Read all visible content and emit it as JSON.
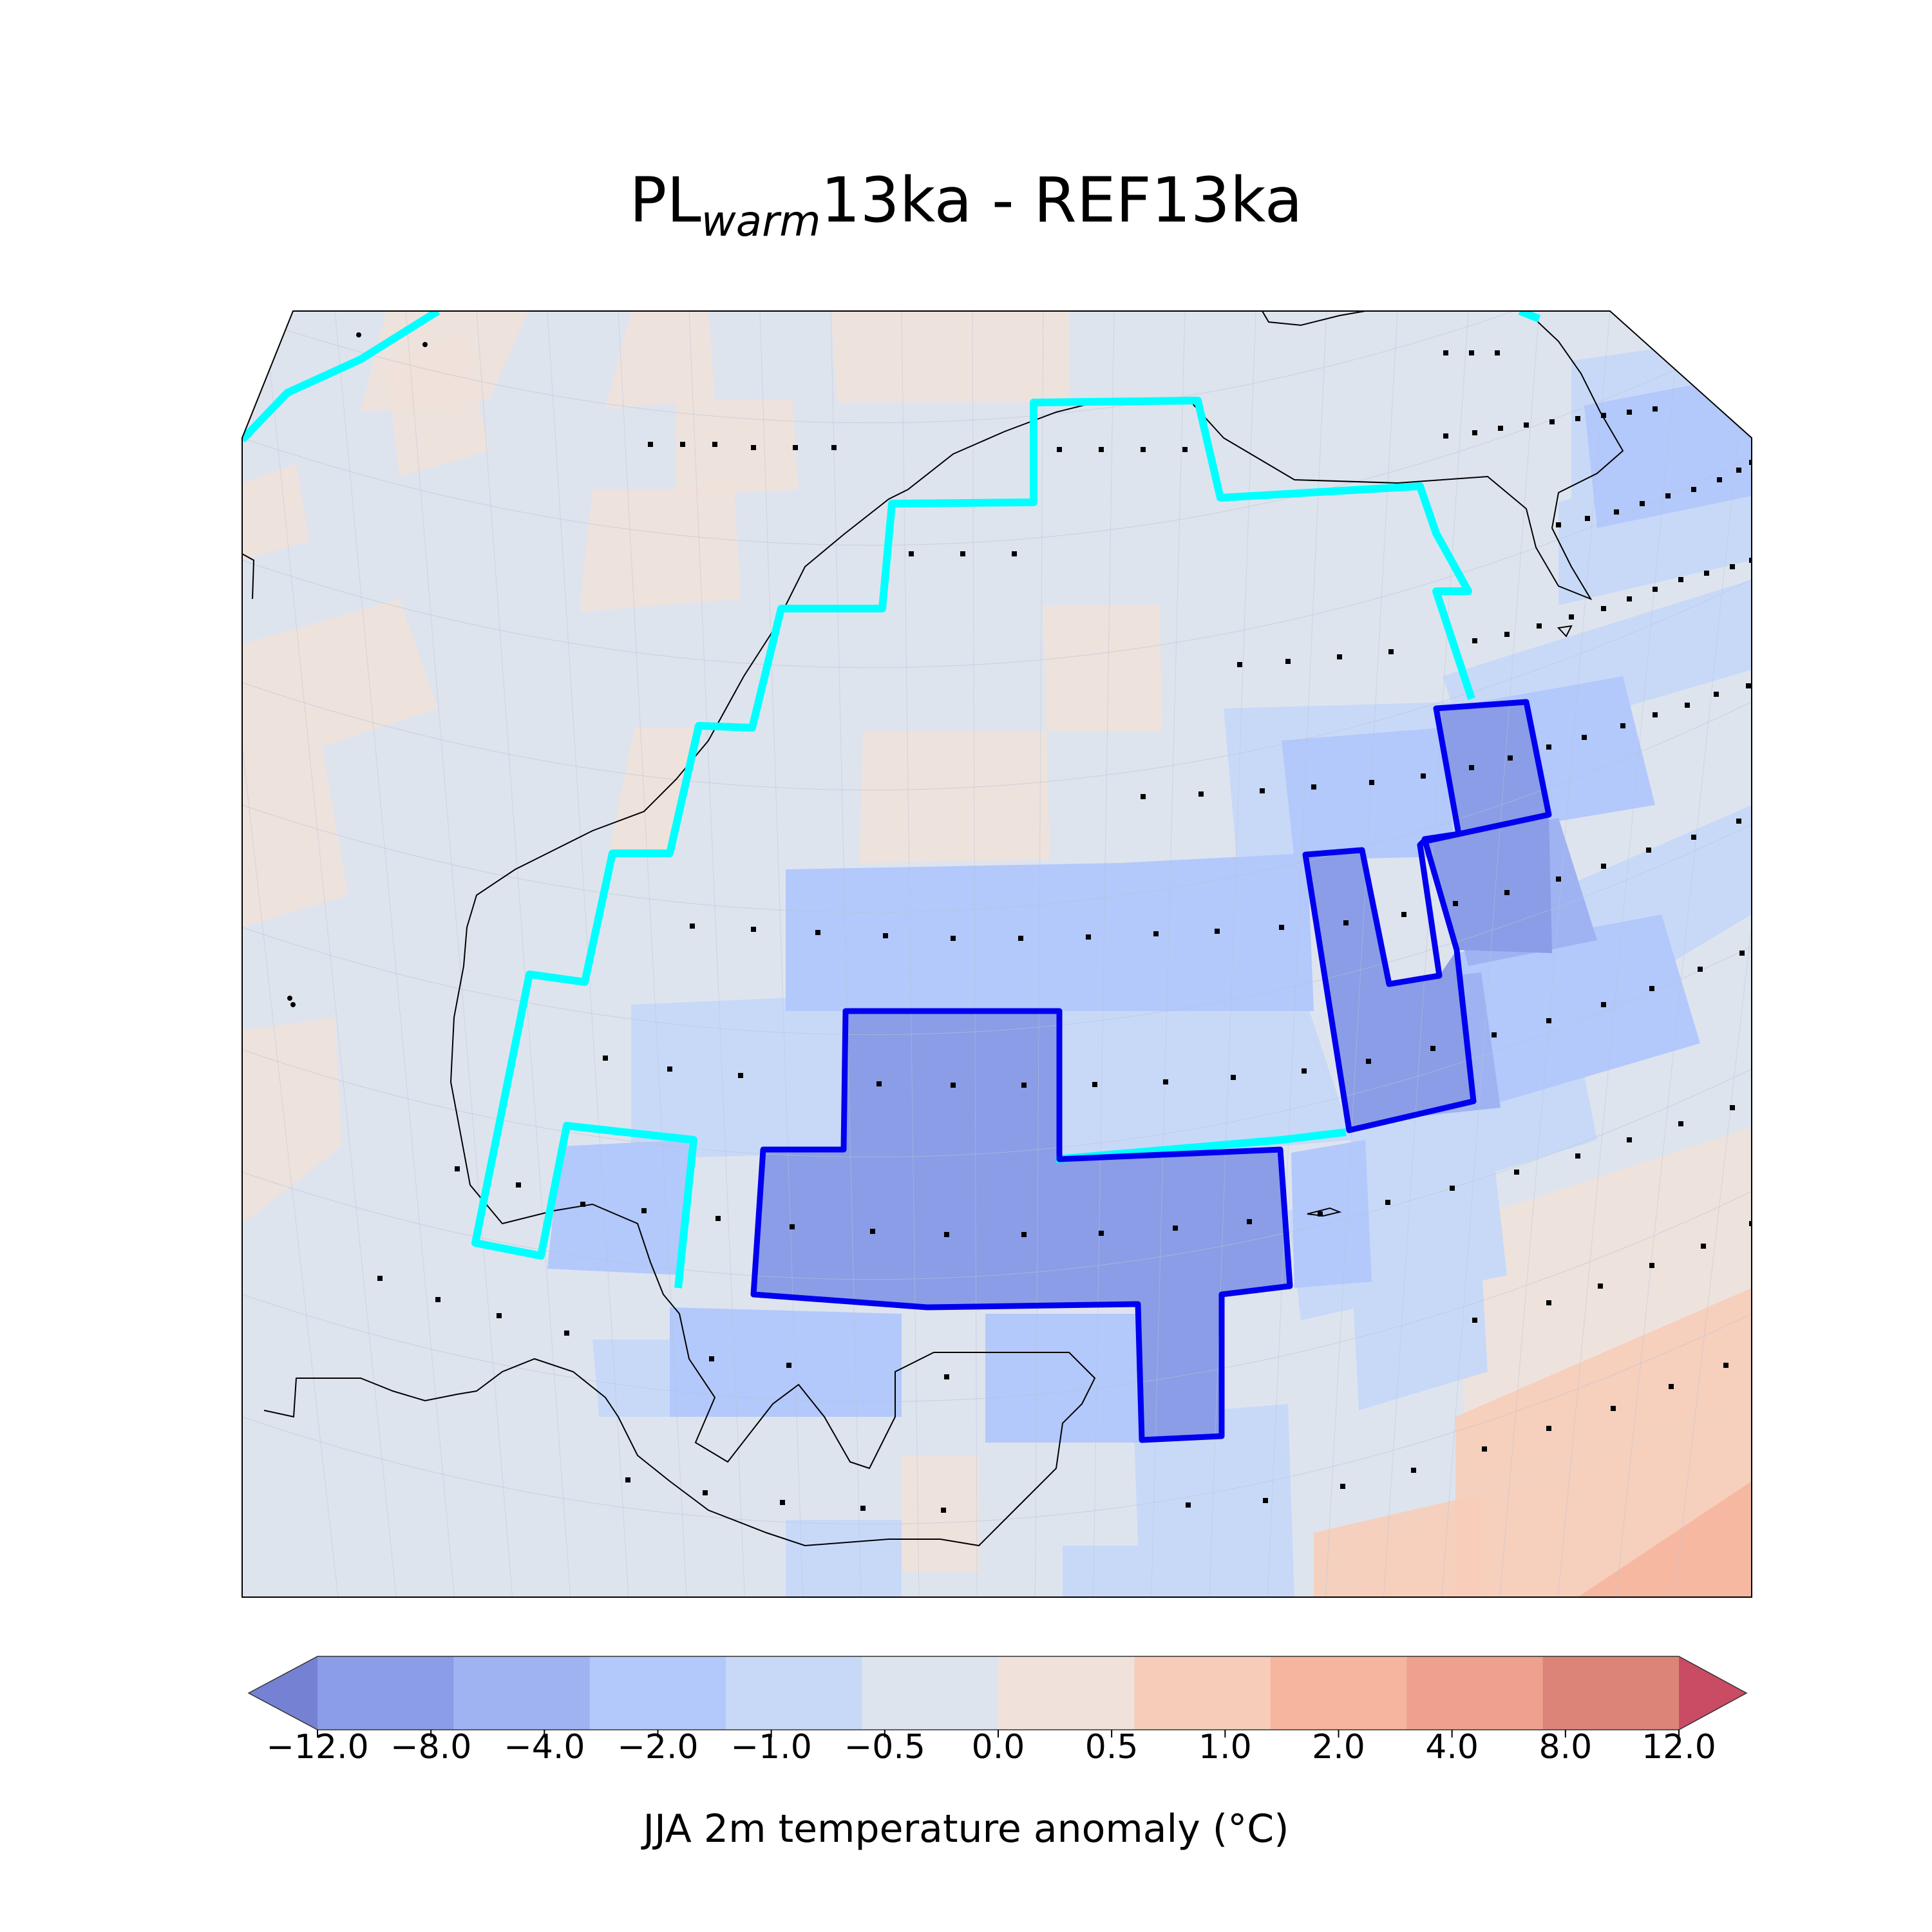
{
  "title": {
    "prefix": "PL",
    "subscript": "warm",
    "suffix": "13ka - REF13ka"
  },
  "colorbar": {
    "label": "JJA 2m temperature anomaly (°C)",
    "ticks": [
      "−12.0",
      "−8.0",
      "−4.0",
      "−2.0",
      "−1.0",
      "−0.5",
      "0.0",
      "0.5",
      "1.0",
      "2.0",
      "4.0",
      "8.0",
      "12.0"
    ],
    "bin_colors": [
      "#7581d2",
      "#8a9de6",
      "#9fb3f3",
      "#b3c8fb",
      "#c8d9f8",
      "#dee4ee",
      "#f0e1da",
      "#f7cdb9",
      "#f6b59e",
      "#eea28e",
      "#dd8478",
      "#c94b64"
    ],
    "extend": "both"
  },
  "map": {
    "projection": "polar stereographic (curved grid)",
    "background_anomaly_class": "-0.5 to 0.0",
    "overlays": [
      {
        "name": "ice-sheet-outline",
        "color": "#00ffff"
      },
      {
        "name": "significant-cooling-outline",
        "color": "#0000ee"
      },
      {
        "name": "coastline",
        "color": "#000000"
      },
      {
        "name": "significance-stippling",
        "color": "#000000"
      }
    ]
  }
}
